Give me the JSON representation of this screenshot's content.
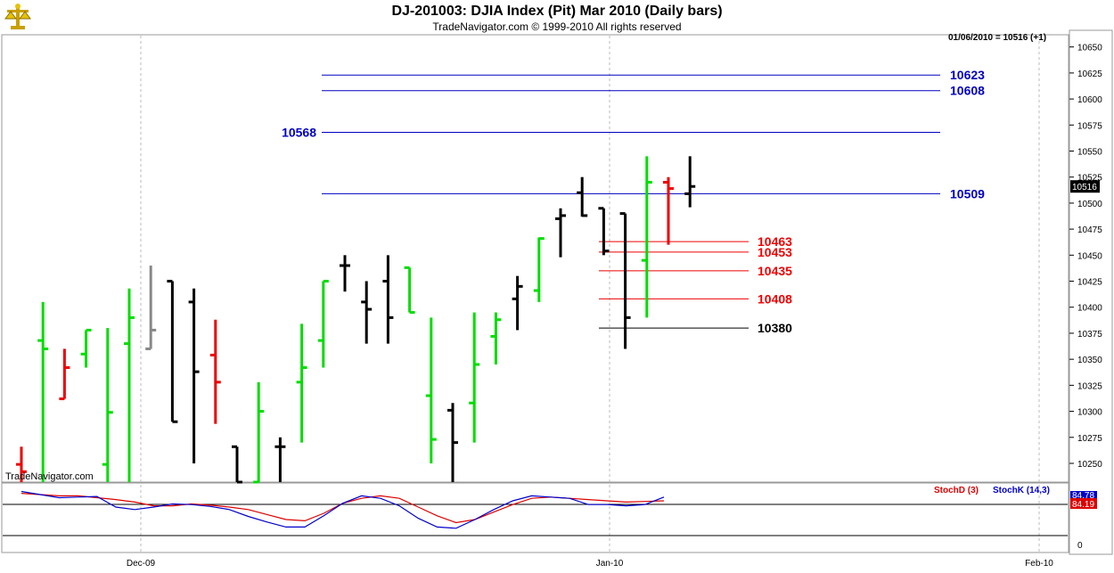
{
  "header": {
    "title": "DJ-201003:  DJIA Index (Pit) Mar 2010  (Daily bars)",
    "copyright": "TradeNavigator.com © 1999-2010 All rights reserved",
    "readout": "01/06/2010 = 10516 (+1)",
    "watermark": "TradeNavigator.com",
    "logo_icon": "scale-logo-icon"
  },
  "colors": {
    "up": "#00dd00",
    "down": "#ee0000",
    "neutral": "#000000",
    "gray": "#888888",
    "level_blue": "#0000c0",
    "level_red": "#ee0000",
    "level_black": "#000000",
    "stoch_d": "#dd0000",
    "stoch_k": "#0000cc"
  },
  "chart_data": [
    {
      "type": "ohlc",
      "title": "DJ-201003:  DJIA Index (Pit) Mar 2010  (Daily bars)",
      "x_labels": [
        "Dec-09",
        "Jan-10",
        "Feb-10"
      ],
      "yticks": [
        10650,
        10625,
        10600,
        10575,
        10550,
        10525,
        10500,
        10475,
        10450,
        10425,
        10400,
        10375,
        10350,
        10325,
        10300,
        10275,
        10250
      ],
      "ylim": [
        10232,
        10660
      ],
      "last_price": "10516",
      "bars": [
        {
          "o": 10249,
          "h": 10266,
          "l": 10232,
          "c": 10242,
          "color": "down"
        },
        {
          "o": 10368,
          "h": 10405,
          "l": 10232,
          "c": 10360,
          "color": "up"
        },
        {
          "o": 10312,
          "h": 10360,
          "l": 10312,
          "c": 10342,
          "color": "down"
        },
        {
          "o": 10355,
          "h": 10378,
          "l": 10342,
          "c": 10378,
          "color": "up"
        },
        {
          "o": 10249,
          "h": 10380,
          "l": 10232,
          "c": 10299,
          "color": "up"
        },
        {
          "o": 10365,
          "h": 10418,
          "l": 10232,
          "c": 10390,
          "color": "up"
        },
        {
          "o": 10360,
          "h": 10440,
          "l": 10360,
          "c": 10378,
          "color": "gray"
        },
        {
          "o": 10425,
          "h": 10425,
          "l": 10290,
          "c": 10290,
          "color": "neutral"
        },
        {
          "o": 10405,
          "h": 10418,
          "l": 10250,
          "c": 10338,
          "color": "neutral"
        },
        {
          "o": 10354,
          "h": 10388,
          "l": 10288,
          "c": 10328,
          "color": "down"
        },
        {
          "o": 10266,
          "h": 10266,
          "l": 10232,
          "c": 10232,
          "color": "neutral"
        },
        {
          "o": 10232,
          "h": 10328,
          "l": 10232,
          "c": 10300,
          "color": "up"
        },
        {
          "o": 10266,
          "h": 10275,
          "l": 10232,
          "c": 10266,
          "color": "neutral"
        },
        {
          "o": 10328,
          "h": 10384,
          "l": 10270,
          "c": 10342,
          "color": "up"
        },
        {
          "o": 10368,
          "h": 10425,
          "l": 10342,
          "c": 10425,
          "color": "up"
        },
        {
          "o": 10440,
          "h": 10450,
          "l": 10415,
          "c": 10440,
          "color": "neutral"
        },
        {
          "o": 10405,
          "h": 10425,
          "l": 10365,
          "c": 10398,
          "color": "neutral"
        },
        {
          "o": 10425,
          "h": 10450,
          "l": 10365,
          "c": 10390,
          "color": "neutral"
        },
        {
          "o": 10438,
          "h": 10438,
          "l": 10395,
          "c": 10395,
          "color": "up"
        },
        {
          "o": 10315,
          "h": 10390,
          "l": 10250,
          "c": 10273,
          "color": "up"
        },
        {
          "o": 10301,
          "h": 10308,
          "l": 10232,
          "c": 10270,
          "color": "neutral"
        },
        {
          "o": 10308,
          "h": 10395,
          "l": 10270,
          "c": 10345,
          "color": "up"
        },
        {
          "o": 10372,
          "h": 10395,
          "l": 10345,
          "c": 10388,
          "color": "up"
        },
        {
          "o": 10408,
          "h": 10430,
          "l": 10378,
          "c": 10420,
          "color": "neutral"
        },
        {
          "o": 10416,
          "h": 10467,
          "l": 10405,
          "c": 10466,
          "color": "up"
        },
        {
          "o": 10485,
          "h": 10495,
          "l": 10448,
          "c": 10488,
          "color": "neutral"
        },
        {
          "o": 10510,
          "h": 10525,
          "l": 10487,
          "c": 10488,
          "color": "neutral"
        },
        {
          "o": 10495,
          "h": 10495,
          "l": 10450,
          "c": 10454,
          "color": "neutral"
        },
        {
          "o": 10490,
          "h": 10490,
          "l": 10360,
          "c": 10390,
          "color": "neutral"
        },
        {
          "o": 10445,
          "h": 10545,
          "l": 10390,
          "c": 10520,
          "color": "up"
        },
        {
          "o": 10520,
          "h": 10525,
          "l": 10460,
          "c": 10514,
          "color": "down"
        },
        {
          "o": 10509,
          "h": 10545,
          "l": 10496,
          "c": 10516,
          "color": "neutral"
        }
      ],
      "levels": [
        {
          "value": 10623,
          "label": "10623",
          "color": "level_blue"
        },
        {
          "value": 10608,
          "label": "10608",
          "color": "level_blue"
        },
        {
          "value": 10568,
          "label": "10568",
          "color": "level_blue"
        },
        {
          "value": 10509,
          "label": "10509",
          "color": "level_blue"
        },
        {
          "value": 10463,
          "label": "10463",
          "color": "level_red"
        },
        {
          "value": 10453,
          "label": "10453",
          "color": "level_red"
        },
        {
          "value": 10435,
          "label": "10435",
          "color": "level_red"
        },
        {
          "value": 10408,
          "label": "10408",
          "color": "level_red"
        },
        {
          "value": 10380,
          "label": "10380",
          "color": "level_black"
        }
      ]
    },
    {
      "type": "line",
      "series": [
        {
          "name": "StochD (3)",
          "color": "stoch_d",
          "values": [
            92,
            90,
            88,
            88,
            85,
            82,
            78,
            72,
            72,
            75,
            73,
            70,
            66,
            58,
            50,
            48,
            60,
            76,
            84,
            88,
            84,
            70,
            56,
            45,
            50,
            62,
            74,
            84,
            86,
            84,
            82,
            80,
            78,
            79,
            80
          ]
        },
        {
          "name": "StochK (14,3)",
          "color": "stoch_k",
          "values": [
            95,
            90,
            85,
            86,
            87,
            70,
            66,
            70,
            75,
            74,
            71,
            66,
            55,
            46,
            38,
            38,
            56,
            76,
            88,
            84,
            72,
            52,
            38,
            36,
            50,
            66,
            80,
            88,
            86,
            84,
            74,
            74,
            72,
            74,
            86
          ]
        }
      ],
      "ylim": [
        0,
        100
      ],
      "yticks": [
        0
      ],
      "values_readout": [
        "84.78",
        "84.19"
      ]
    }
  ]
}
